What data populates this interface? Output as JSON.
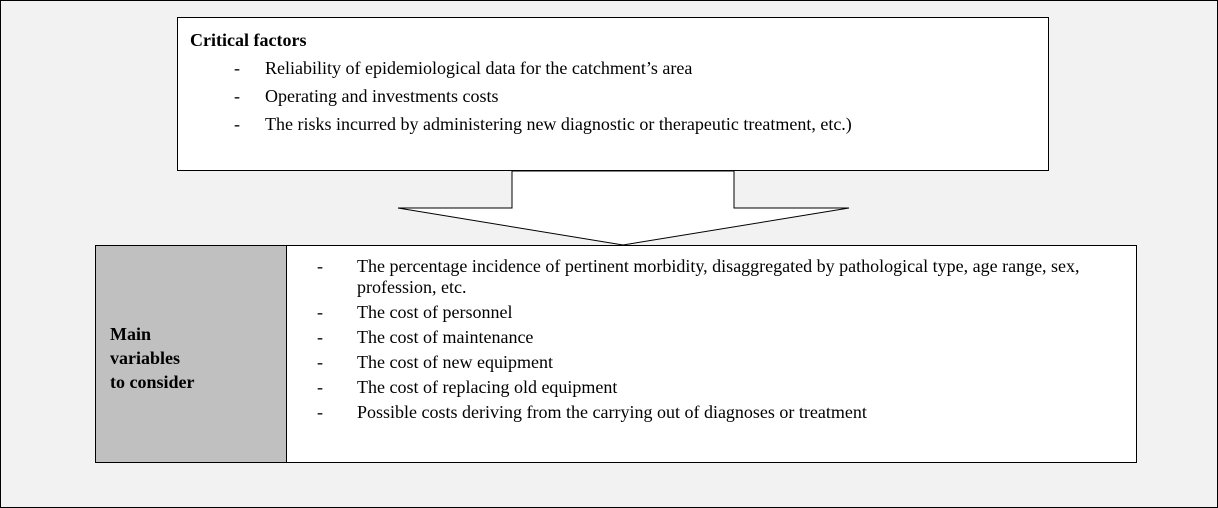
{
  "top_box": {
    "title": "Critical factors",
    "items": [
      "Reliability of epidemiological data for the catchment’s area",
      "Operating and investments costs",
      "The risks incurred by administering new diagnostic or therapeutic treatment, etc.)"
    ]
  },
  "bottom_box": {
    "label": [
      "Main",
      "variables",
      "to consider"
    ],
    "items": [
      "The percentage incidence of pertinent morbidity, disaggregated by pathological type, age range, sex, profession, etc.",
      "The cost of personnel",
      "The cost of maintenance",
      "The cost of new equipment",
      "The cost of replacing old equipment",
      "Possible costs deriving from the carrying out of diagnoses or treatment"
    ]
  }
}
